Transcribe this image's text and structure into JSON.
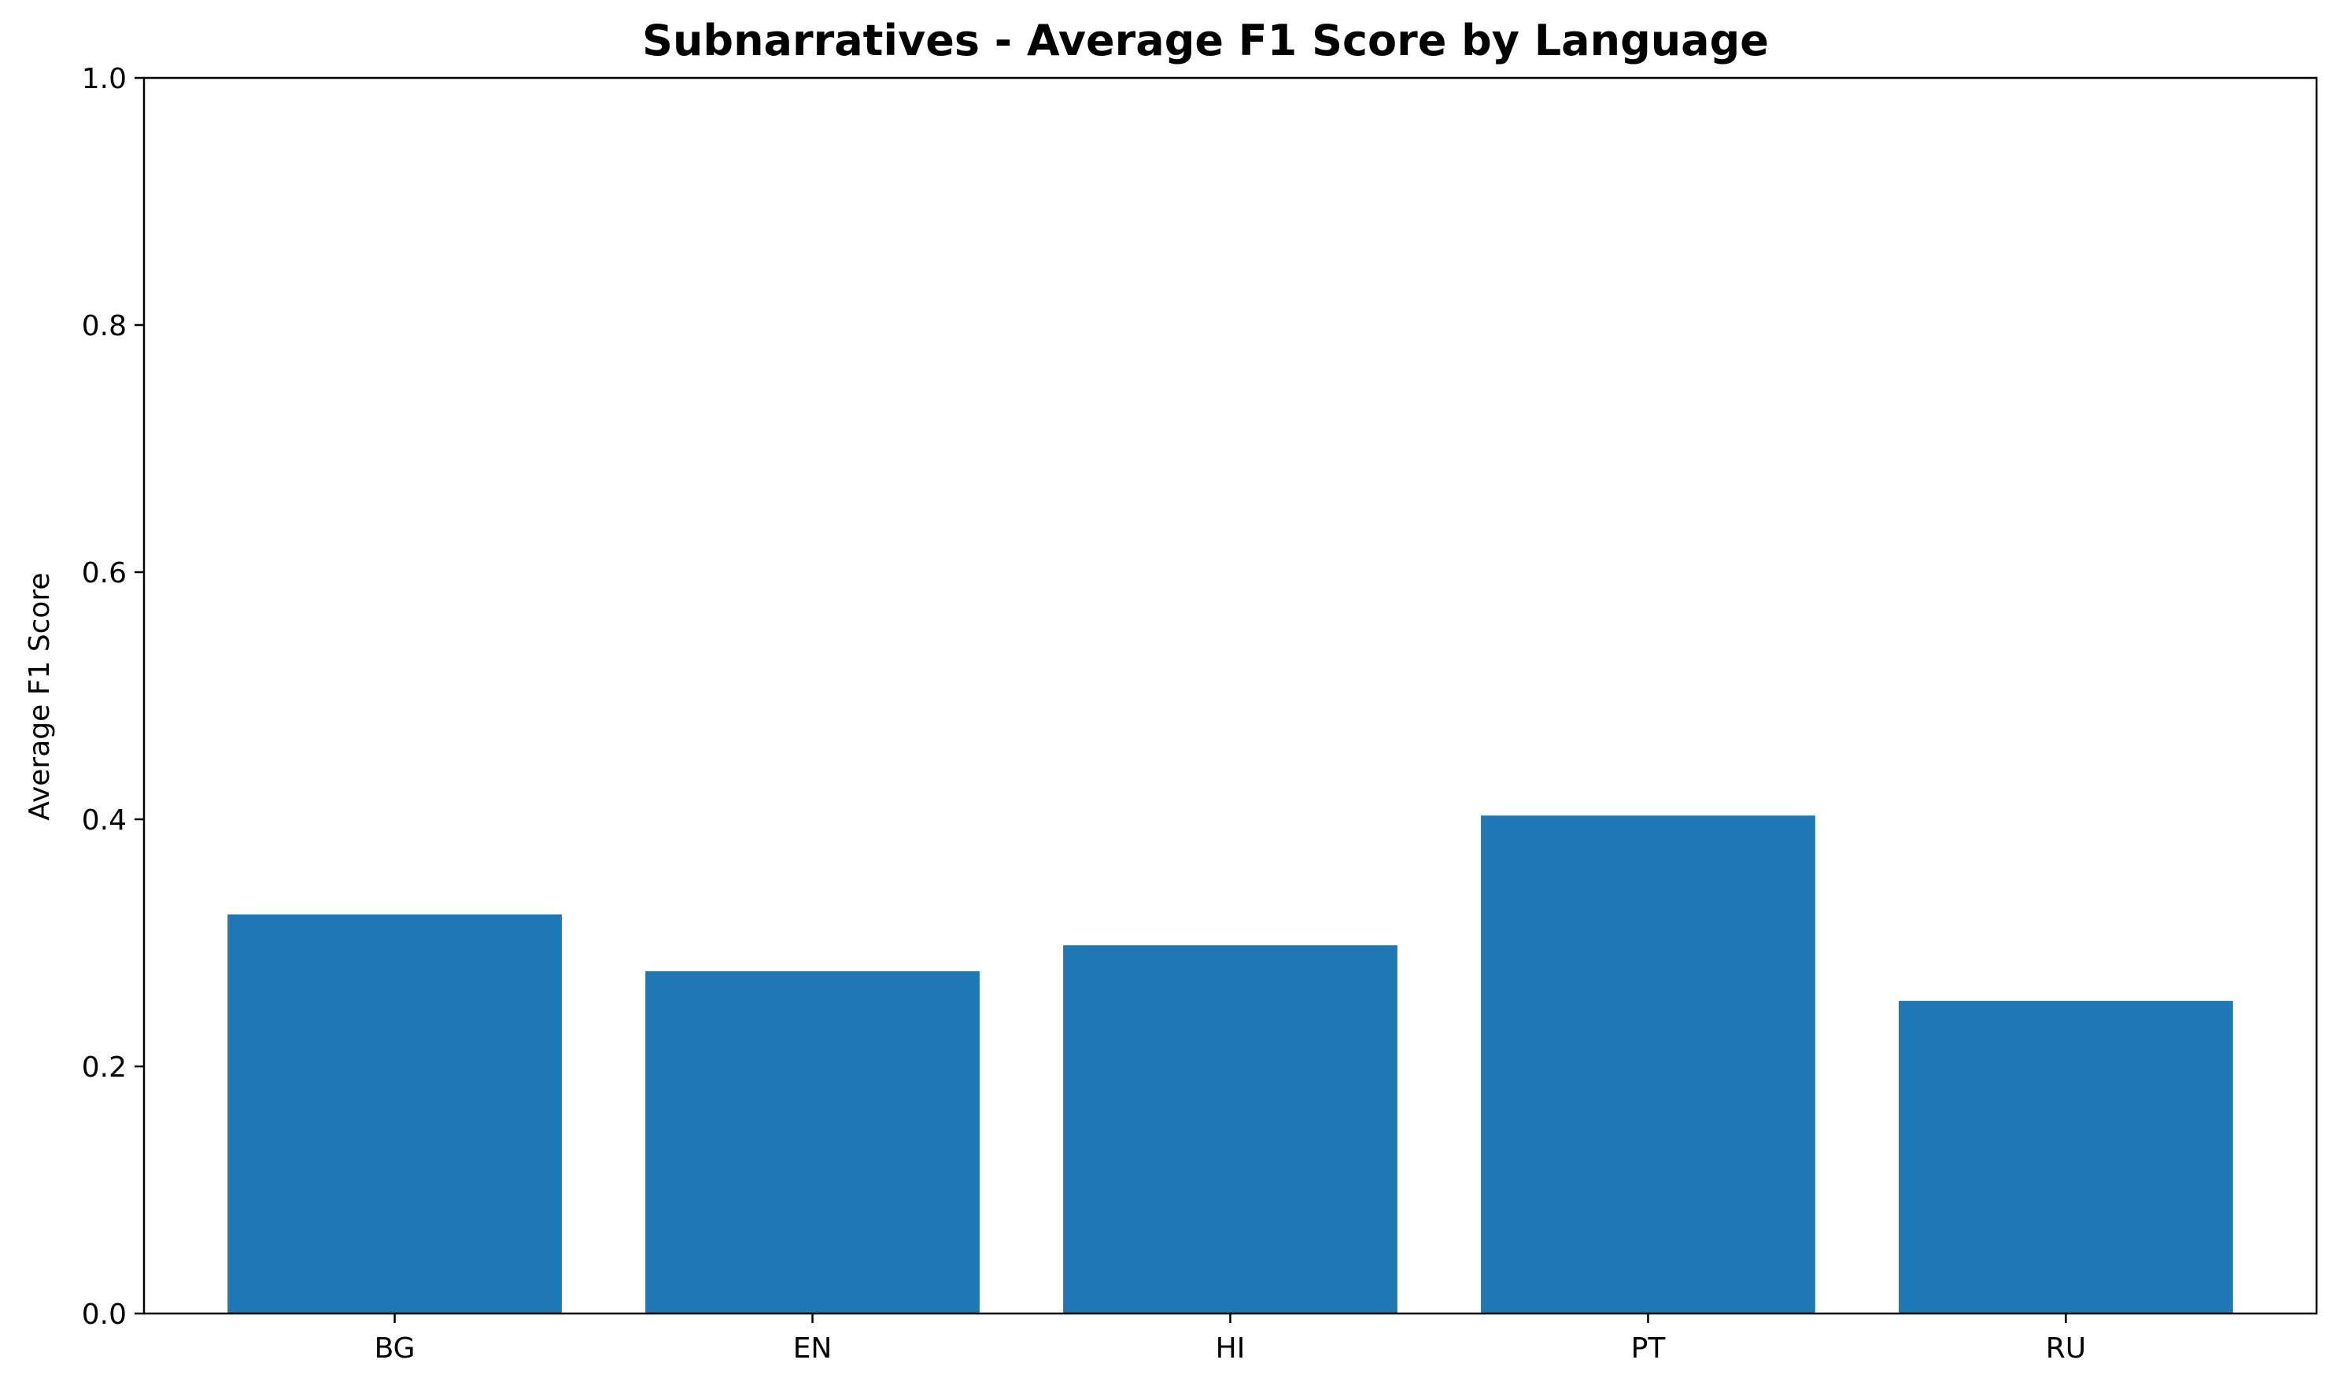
{
  "chart_data": {
    "type": "bar",
    "title": "Subnarratives - Average F1 Score by Language",
    "xlabel": "",
    "ylabel": "Average F1 Score",
    "categories": [
      "BG",
      "EN",
      "HI",
      "PT",
      "RU"
    ],
    "values": [
      0.323,
      0.277,
      0.298,
      0.403,
      0.253
    ],
    "ylim": [
      0,
      1.0
    ],
    "yticks": [
      "0.0",
      "0.2",
      "0.4",
      "0.6",
      "0.8",
      "1.0"
    ],
    "grid": false,
    "legend": "none",
    "colors": {
      "bar": "#1f77b4"
    }
  }
}
